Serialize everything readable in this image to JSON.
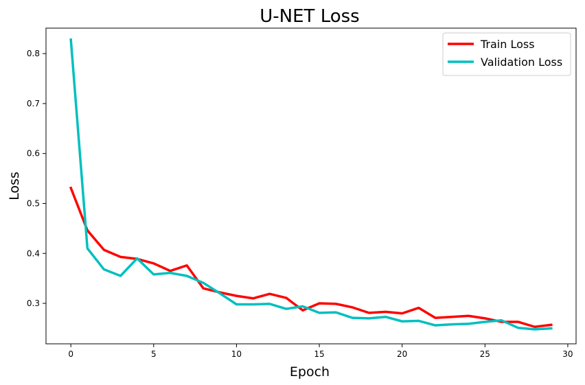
{
  "chart_data": {
    "type": "line",
    "title": "U-NET Loss",
    "xlabel": "Epoch",
    "ylabel": "Loss",
    "xlim": [
      -1.5,
      30.5
    ],
    "ylim": [
      0.219,
      0.851
    ],
    "xticks": [
      0,
      5,
      10,
      15,
      20,
      25,
      30
    ],
    "yticks": [
      0.3,
      0.4,
      0.5,
      0.6,
      0.7,
      0.8
    ],
    "x": [
      0,
      1,
      2,
      3,
      4,
      5,
      6,
      7,
      8,
      9,
      10,
      11,
      12,
      13,
      14,
      15,
      16,
      17,
      18,
      19,
      20,
      21,
      22,
      23,
      24,
      25,
      26,
      27,
      28,
      29
    ],
    "grid": false,
    "legend_position": "upper right",
    "series": [
      {
        "name": "Train Loss",
        "color": "#ff0000",
        "values": [
          0.531,
          0.446,
          0.407,
          0.393,
          0.389,
          0.38,
          0.365,
          0.376,
          0.33,
          0.322,
          0.315,
          0.31,
          0.319,
          0.311,
          0.286,
          0.3,
          0.299,
          0.292,
          0.281,
          0.283,
          0.28,
          0.291,
          0.271,
          0.273,
          0.275,
          0.27,
          0.263,
          0.263,
          0.253,
          0.257
        ]
      },
      {
        "name": "Validation Loss",
        "color": "#00bfbf",
        "values": [
          0.828,
          0.41,
          0.368,
          0.355,
          0.39,
          0.358,
          0.361,
          0.355,
          0.341,
          0.32,
          0.298,
          0.298,
          0.299,
          0.289,
          0.294,
          0.281,
          0.282,
          0.271,
          0.27,
          0.273,
          0.264,
          0.265,
          0.256,
          0.258,
          0.259,
          0.263,
          0.266,
          0.251,
          0.248,
          0.25
        ]
      }
    ]
  }
}
